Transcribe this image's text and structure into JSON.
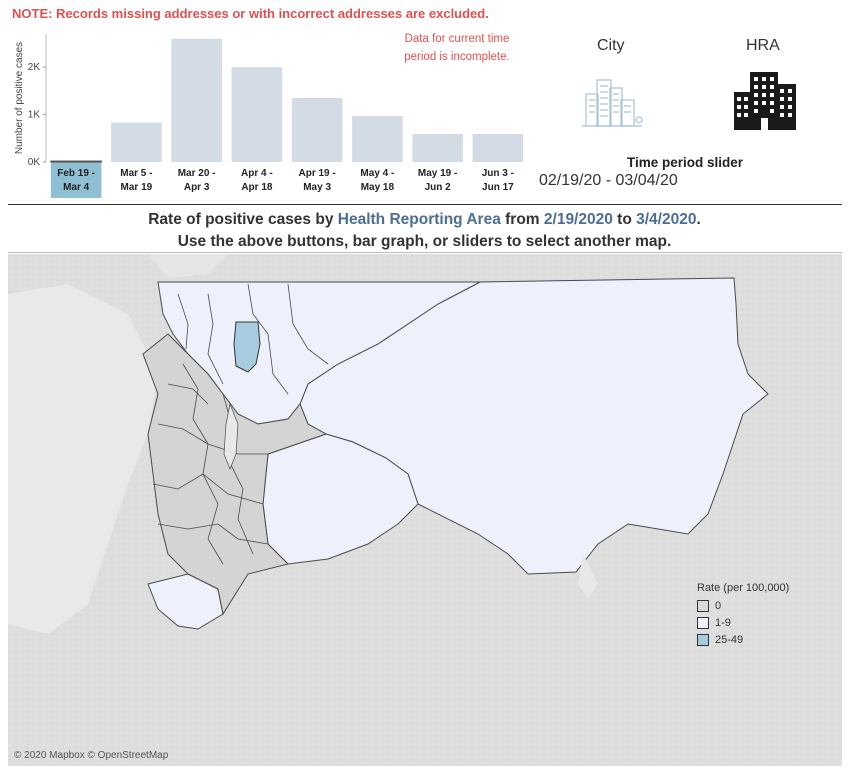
{
  "note": "NOTE: Records missing addresses or with incorrect addresses are excluded.",
  "incomplete_note_line1": "Data for current time",
  "incomplete_note_line2": "period is incomplete.",
  "buttons": {
    "city_label": "City",
    "hra_label": "HRA"
  },
  "slider": {
    "title": "Time period slider",
    "range": "02/19/20 - 03/04/20"
  },
  "heading": {
    "line1_pre": "Rate of positive cases by ",
    "line1_area": "Health Reporting Area",
    "line1_from": " from ",
    "line1_start": "2/19/2020",
    "line1_to": " to ",
    "line1_end": "3/4/2020",
    "line1_dot": ".",
    "line2": "Use the above buttons, bar graph, or sliders to select another map."
  },
  "legend": {
    "title": "Rate (per 100,000)",
    "items": [
      {
        "label": "0",
        "color": "#d9d9d9"
      },
      {
        "label": "1-9",
        "color": "#eef0fb"
      },
      {
        "label": "25-49",
        "color": "#a7ccdf"
      }
    ]
  },
  "attribution": "© 2020 Mapbox © OpenStreetMap",
  "chart_data": {
    "type": "bar",
    "ylabel": "Number of positive cases",
    "yticks": [
      "0K",
      "1K",
      "2K"
    ],
    "ylim": [
      0,
      2700
    ],
    "categories": [
      [
        "Feb 19 -",
        "Mar 4"
      ],
      [
        "Mar 5 -",
        "Mar 19"
      ],
      [
        "Mar 20 -",
        "Apr 3"
      ],
      [
        "Apr 4 -",
        "Apr 18"
      ],
      [
        "Apr 19 -",
        "May 3"
      ],
      [
        "May 4 -",
        "May 18"
      ],
      [
        "May 19 -",
        "Jun 2"
      ],
      [
        "Jun 3 -",
        "Jun 17"
      ]
    ],
    "values": [
      20,
      830,
      2600,
      2000,
      1350,
      970,
      590,
      590
    ],
    "selected_index": 0,
    "bar_color": "#d3dbe4",
    "selected_color": "#8fbfd3"
  }
}
